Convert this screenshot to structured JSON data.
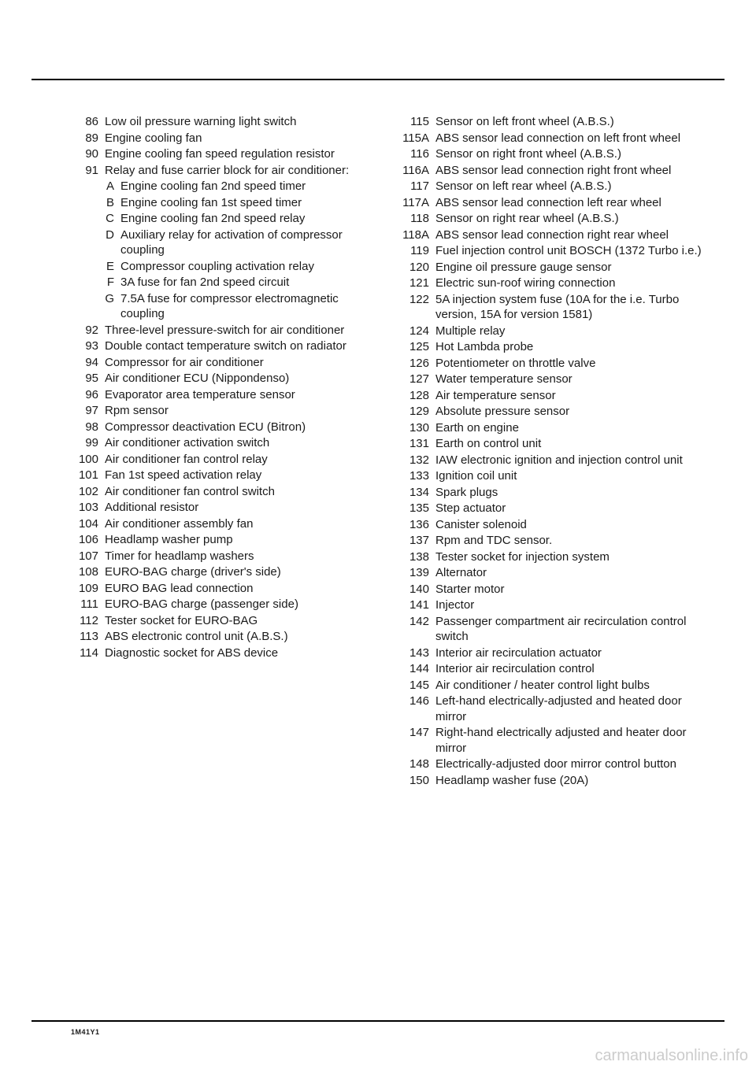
{
  "footer_code": "1M41Y1",
  "watermark": "carmanualsonline.info",
  "left_column": [
    {
      "num": "86",
      "text": "Low oil pressure warning light switch"
    },
    {
      "num": "89",
      "text": "Engine cooling fan"
    },
    {
      "num": "90",
      "text": "Engine cooling fan speed regulation resistor"
    },
    {
      "num": "91",
      "text": "Relay and fuse carrier block for air conditioner:"
    },
    {
      "letter": "A",
      "text": "Engine cooling fan 2nd speed timer"
    },
    {
      "letter": "B",
      "text": "Engine cooling fan 1st speed timer"
    },
    {
      "letter": "C",
      "text": "Engine cooling fan 2nd speed relay"
    },
    {
      "letter": "D",
      "text": "Auxiliary relay for activation of compressor coupling"
    },
    {
      "letter": "E",
      "text": "Compressor coupling activation relay"
    },
    {
      "letter": "F",
      "text": "3A fuse for fan 2nd speed circuit"
    },
    {
      "letter": "G",
      "text": "7.5A fuse for compressor electromagnetic coupling"
    },
    {
      "num": "92",
      "text": "Three-level pressure-switch for air conditioner"
    },
    {
      "num": "93",
      "text": "Double contact temperature switch on radiator"
    },
    {
      "num": "94",
      "text": "Compressor for air conditioner"
    },
    {
      "num": "95",
      "text": "Air conditioner ECU (Nippondenso)"
    },
    {
      "num": "96",
      "text": "Evaporator area temperature sensor"
    },
    {
      "num": "97",
      "text": "Rpm sensor"
    },
    {
      "num": "98",
      "text": "Compressor deactivation ECU (Bitron)"
    },
    {
      "num": "99",
      "text": "Air conditioner activation switch"
    },
    {
      "num": "100",
      "text": "Air conditioner fan control relay"
    },
    {
      "num": "101",
      "text": "Fan 1st speed activation relay"
    },
    {
      "num": "102",
      "text": "Air conditioner fan control switch"
    },
    {
      "num": "103",
      "text": "Additional resistor"
    },
    {
      "num": "104",
      "text": "Air conditioner assembly fan"
    },
    {
      "num": "106",
      "text": "Headlamp washer pump"
    },
    {
      "num": "107",
      "text": "Timer for headlamp washers"
    },
    {
      "num": "108",
      "text": "EURO-BAG charge (driver's side)"
    },
    {
      "num": "109",
      "text": "EURO BAG lead connection"
    },
    {
      "num": "111",
      "text": "EURO-BAG charge (passenger side)"
    },
    {
      "num": "112",
      "text": "Tester socket for EURO-BAG"
    },
    {
      "num": "113",
      "text": "ABS electronic control unit (A.B.S.)"
    },
    {
      "num": "114",
      "text": "Diagnostic socket for ABS device"
    }
  ],
  "right_column": [
    {
      "num": "115",
      "text": "Sensor on left front wheel (A.B.S.)"
    },
    {
      "num": "115A",
      "text": "ABS sensor lead connection on left front wheel"
    },
    {
      "num": "116",
      "text": "Sensor on right front wheel (A.B.S.)"
    },
    {
      "num": "116A",
      "text": "ABS sensor lead connection right front wheel"
    },
    {
      "num": "117",
      "text": "Sensor on left rear wheel (A.B.S.)"
    },
    {
      "num": "117A",
      "text": "ABS sensor lead connection left rear wheel"
    },
    {
      "num": "118",
      "text": "Sensor on right rear wheel (A.B.S.)"
    },
    {
      "num": "118A",
      "text": "ABS sensor lead connection right rear wheel"
    },
    {
      "num": "119",
      "text": "Fuel injection control unit BOSCH (1372 Turbo i.e.)"
    },
    {
      "num": "120",
      "text": "Engine oil pressure gauge sensor"
    },
    {
      "num": "121",
      "text": "Electric sun-roof wiring connection"
    },
    {
      "num": "122",
      "text": "5A injection system fuse (10A for the i.e. Turbo version, 15A for version 1581)"
    },
    {
      "num": "124",
      "text": "Multiple relay"
    },
    {
      "num": "125",
      "text": "Hot Lambda probe"
    },
    {
      "num": "126",
      "text": "Potentiometer on throttle valve"
    },
    {
      "num": "127",
      "text": "Water temperature sensor"
    },
    {
      "num": "128",
      "text": "Air temperature sensor"
    },
    {
      "num": "129",
      "text": "Absolute pressure sensor"
    },
    {
      "num": "130",
      "text": "Earth on engine"
    },
    {
      "num": "131",
      "text": "Earth on control unit"
    },
    {
      "num": "132",
      "text": "IAW electronic ignition and injection control unit"
    },
    {
      "num": "133",
      "text": "Ignition coil unit"
    },
    {
      "num": "134",
      "text": "Spark plugs"
    },
    {
      "num": "135",
      "text": "Step actuator"
    },
    {
      "num": "136",
      "text": "Canister solenoid"
    },
    {
      "num": "137",
      "text": "Rpm and TDC sensor."
    },
    {
      "num": "138",
      "text": "Tester socket for injection system"
    },
    {
      "num": "139",
      "text": "Alternator"
    },
    {
      "num": "140",
      "text": "Starter motor"
    },
    {
      "num": "141",
      "text": "Injector"
    },
    {
      "num": "142",
      "text": "Passenger compartment air recirculation control switch"
    },
    {
      "num": "143",
      "text": "Interior air recirculation actuator"
    },
    {
      "num": "144",
      "text": "Interior air recirculation control"
    },
    {
      "num": "145",
      "text": "Air conditioner / heater control light bulbs"
    },
    {
      "num": "146",
      "text": "Left-hand electrically-adjusted and heated door mirror"
    },
    {
      "num": "147",
      "text": "Right-hand electrically adjusted and heater door mirror"
    },
    {
      "num": "148",
      "text": "Electrically-adjusted door mirror control button"
    },
    {
      "num": "150",
      "text": "Headlamp washer fuse (20A)"
    }
  ]
}
